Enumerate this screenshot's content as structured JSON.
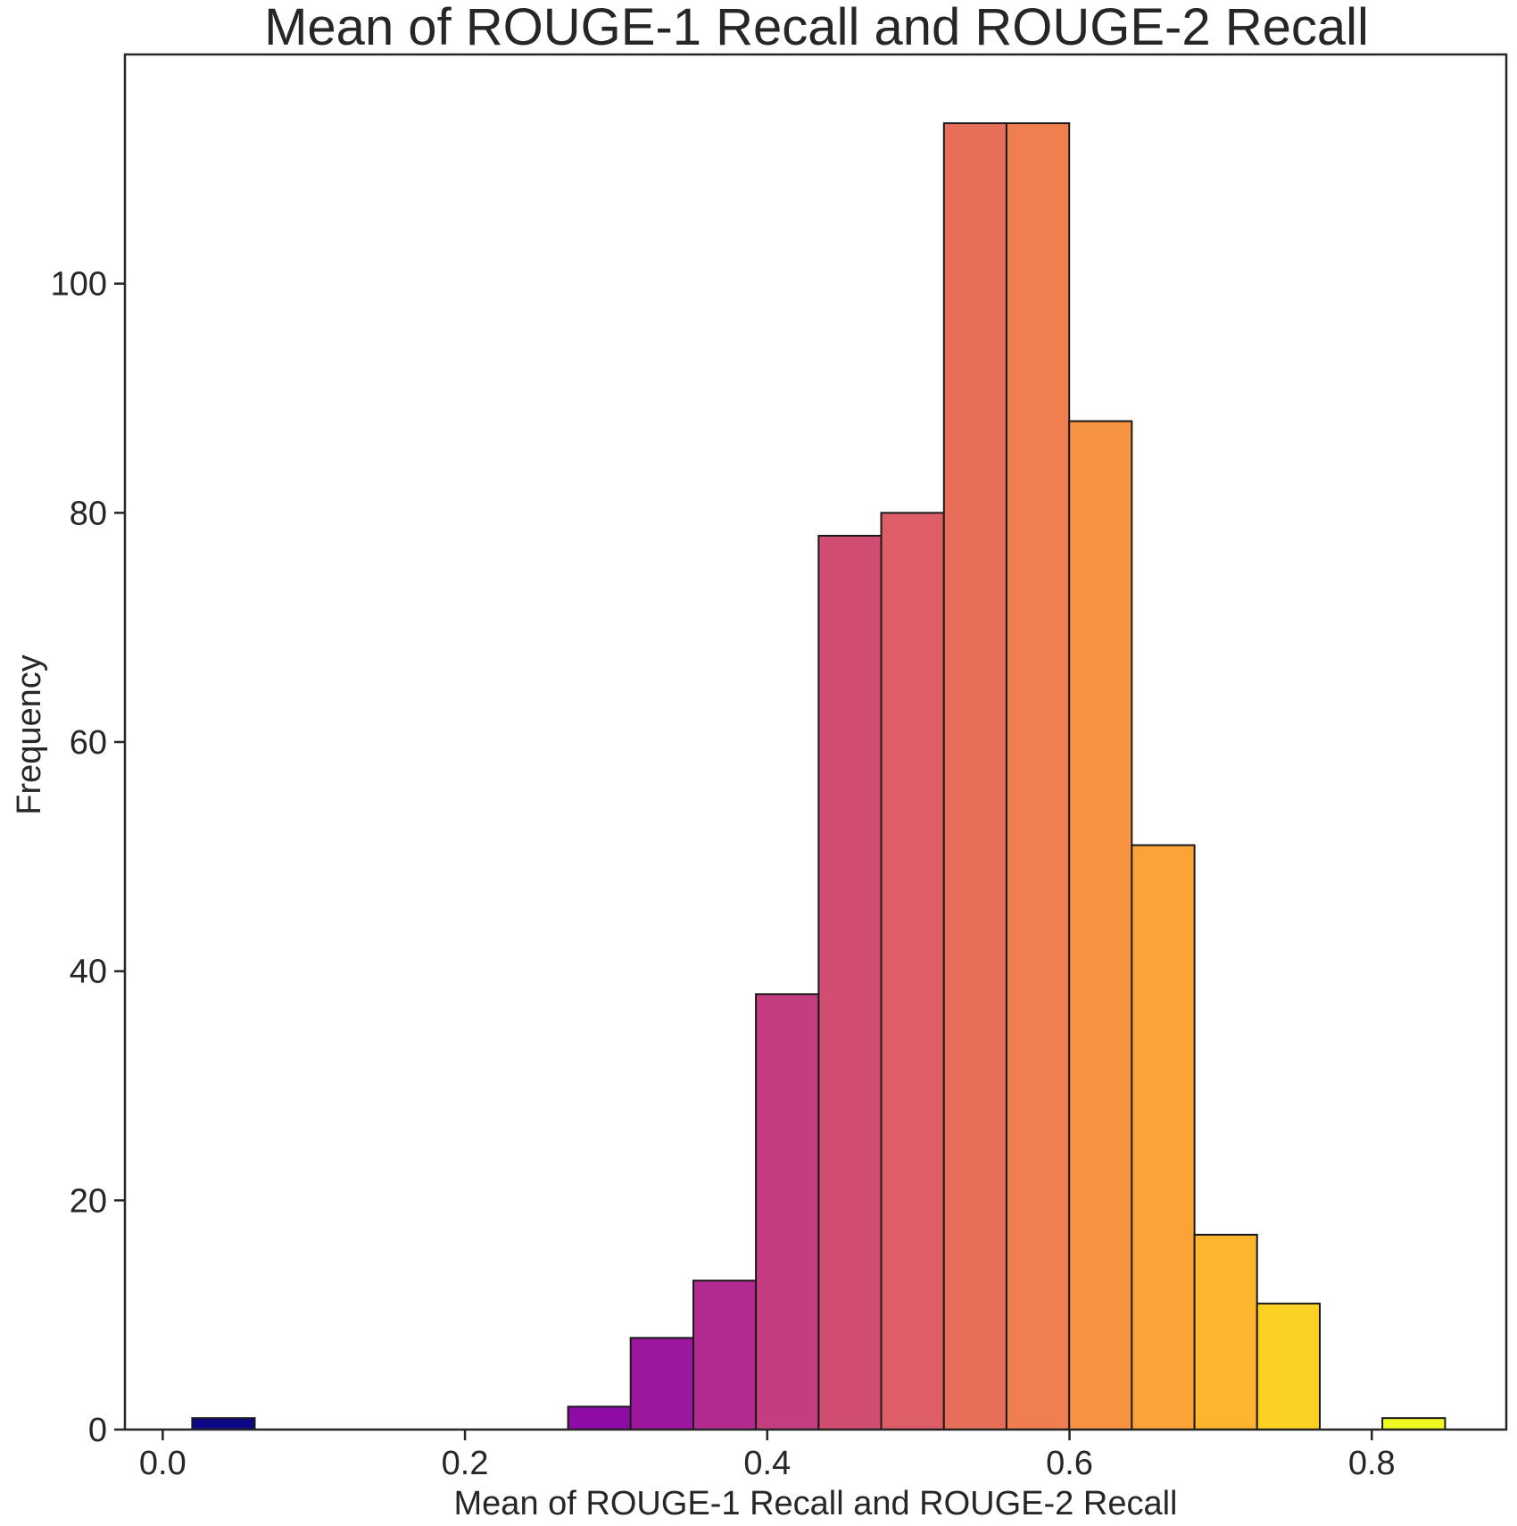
{
  "chart_data": {
    "type": "bar",
    "title": "Mean of ROUGE-1 Recall and ROUGE-2 Recall",
    "xlabel": "Mean of ROUGE-1 Recall and ROUGE-2 Recall",
    "ylabel": "Frequency",
    "xlim": [
      -0.025,
      0.889
    ],
    "ylim": [
      0,
      120
    ],
    "xticks": [
      {
        "value": 0.0,
        "label": "0.0"
      },
      {
        "value": 0.2,
        "label": "0.2"
      },
      {
        "value": 0.4,
        "label": "0.4"
      },
      {
        "value": 0.6,
        "label": "0.6"
      },
      {
        "value": 0.8,
        "label": "0.8"
      }
    ],
    "yticks": [
      {
        "value": 0,
        "label": "0"
      },
      {
        "value": 20,
        "label": "20"
      },
      {
        "value": 40,
        "label": "40"
      },
      {
        "value": 60,
        "label": "60"
      },
      {
        "value": 80,
        "label": "80"
      },
      {
        "value": 100,
        "label": "100"
      }
    ],
    "bins": [
      {
        "x0": 0.0195,
        "x1": 0.0609,
        "count": 1,
        "color": "#0d0887"
      },
      {
        "x0": 0.0609,
        "x1": 0.1024,
        "count": 0,
        "color": "#33068e"
      },
      {
        "x0": 0.1024,
        "x1": 0.1438,
        "count": 0,
        "color": "#4a02a0"
      },
      {
        "x0": 0.1438,
        "x1": 0.1853,
        "count": 0,
        "color": "#5c01a6"
      },
      {
        "x0": 0.1853,
        "x1": 0.2267,
        "count": 0,
        "color": "#6e00a8"
      },
      {
        "x0": 0.2267,
        "x1": 0.2682,
        "count": 0,
        "color": "#7e03a8"
      },
      {
        "x0": 0.2682,
        "x1": 0.3096,
        "count": 2,
        "color": "#8e0ba5"
      },
      {
        "x0": 0.3096,
        "x1": 0.3511,
        "count": 8,
        "color": "#9c179e"
      },
      {
        "x0": 0.3511,
        "x1": 0.3925,
        "count": 13,
        "color": "#b12a90"
      },
      {
        "x0": 0.3925,
        "x1": 0.434,
        "count": 38,
        "color": "#c33d80"
      },
      {
        "x0": 0.434,
        "x1": 0.4754,
        "count": 78,
        "color": "#d14e72"
      },
      {
        "x0": 0.4754,
        "x1": 0.5169,
        "count": 80,
        "color": "#dd5e66"
      },
      {
        "x0": 0.5169,
        "x1": 0.5583,
        "count": 114,
        "color": "#e76f5a"
      },
      {
        "x0": 0.5583,
        "x1": 0.5998,
        "count": 114,
        "color": "#f07f4f"
      },
      {
        "x0": 0.5998,
        "x1": 0.6412,
        "count": 88,
        "color": "#f89441"
      },
      {
        "x0": 0.6412,
        "x1": 0.6827,
        "count": 51,
        "color": "#fca338"
      },
      {
        "x0": 0.6827,
        "x1": 0.7241,
        "count": 17,
        "color": "#fdb42f"
      },
      {
        "x0": 0.7241,
        "x1": 0.7656,
        "count": 11,
        "color": "#fbd124"
      },
      {
        "x0": 0.7656,
        "x1": 0.807,
        "count": 0,
        "color": "#f5e626"
      },
      {
        "x0": 0.807,
        "x1": 0.8485,
        "count": 1,
        "color": "#f0f921"
      }
    ],
    "grid": false,
    "legend": "none"
  }
}
